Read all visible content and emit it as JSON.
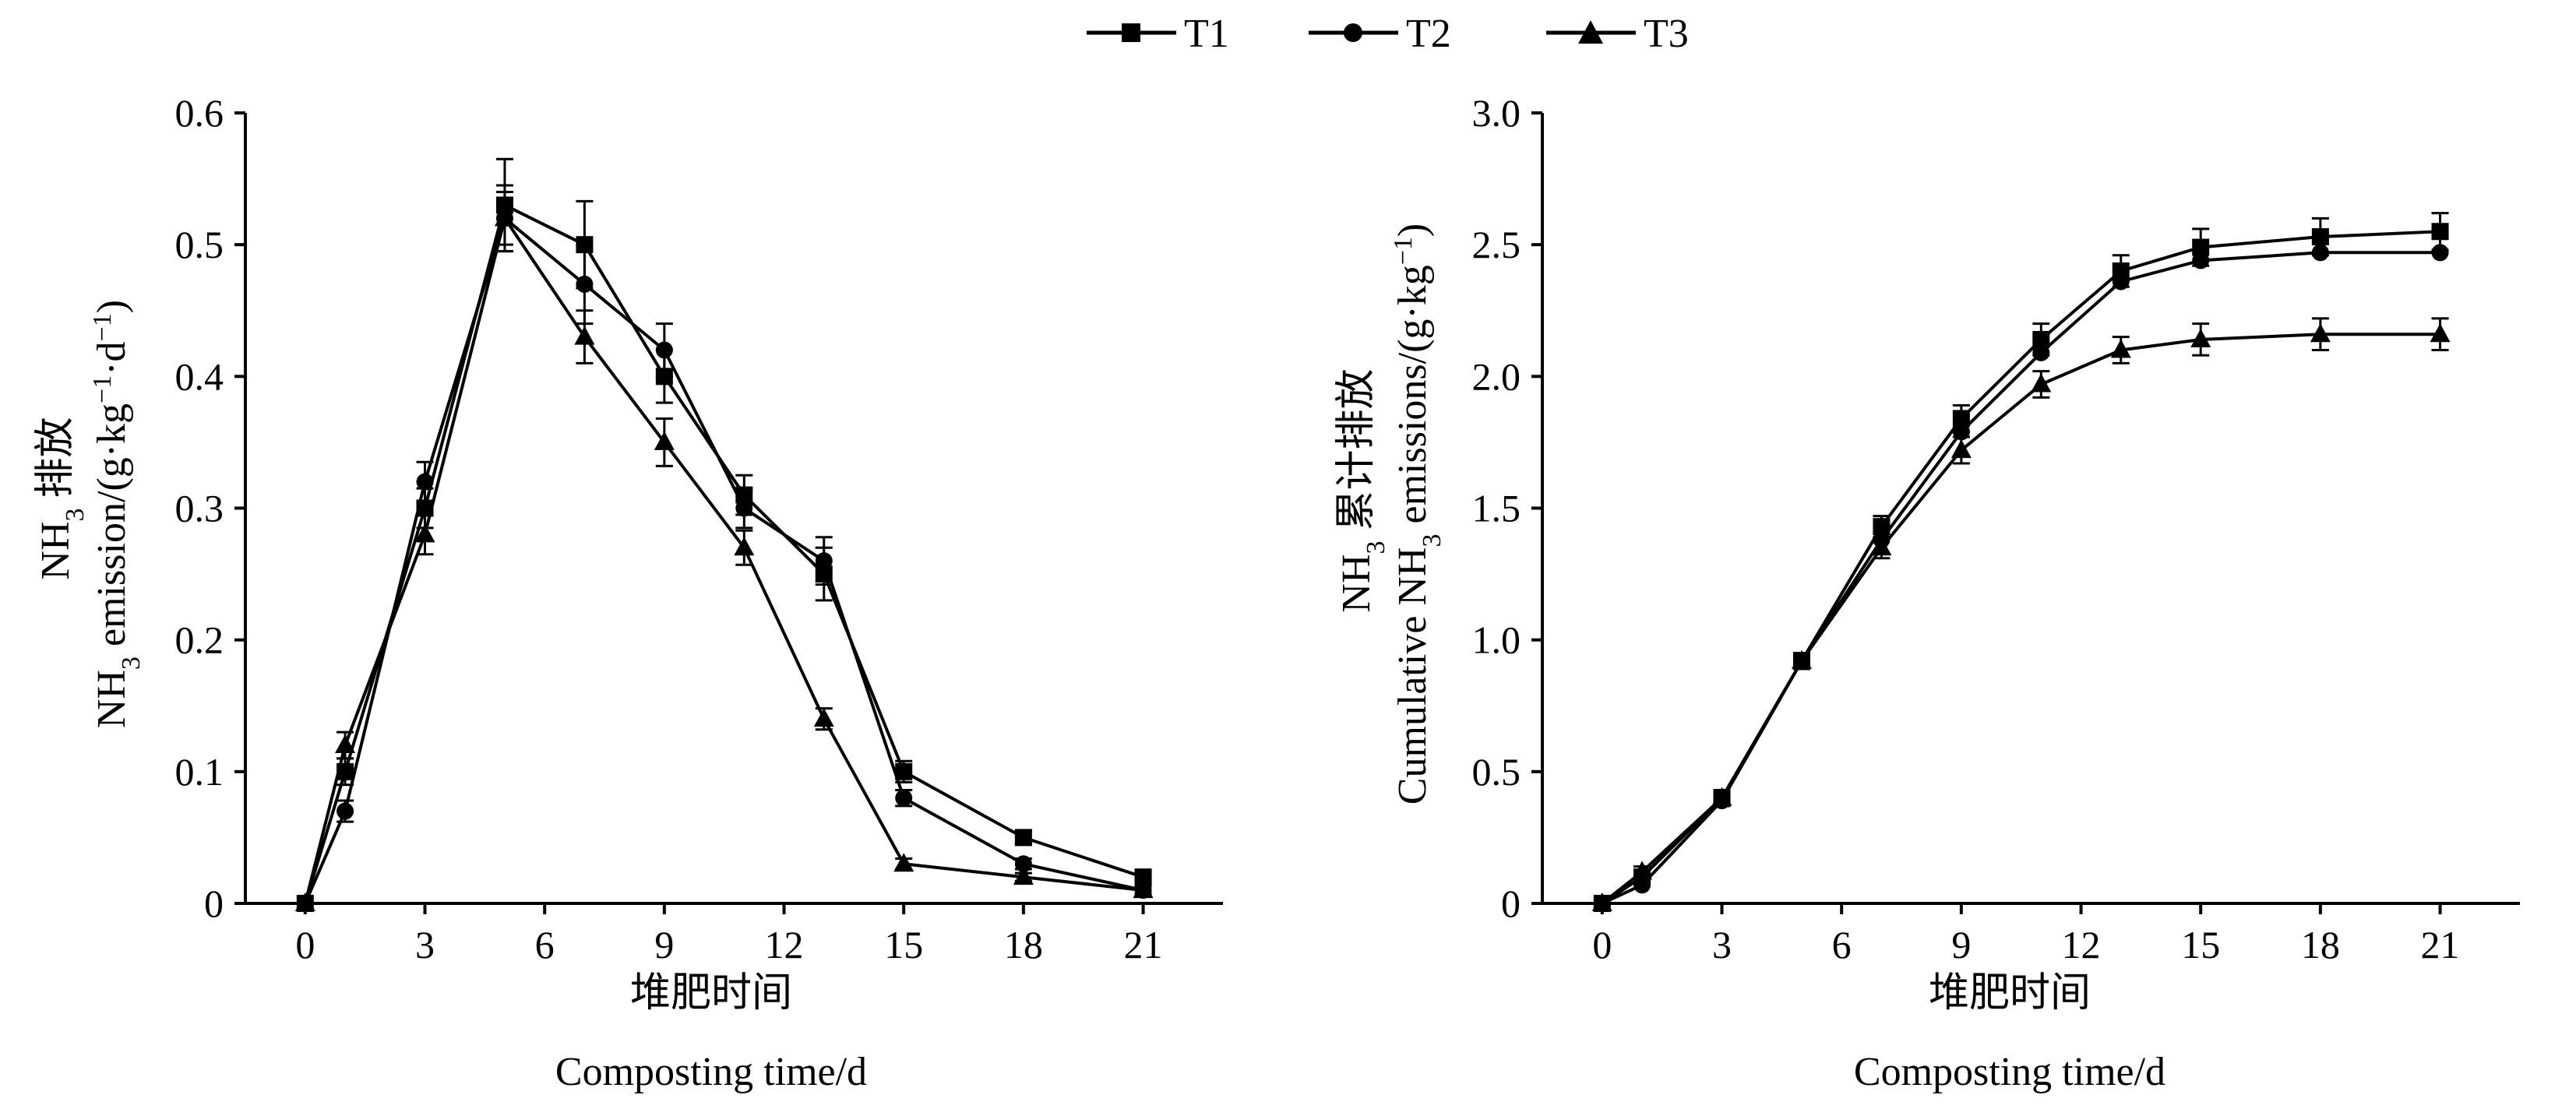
{
  "legend": [
    "T1",
    "T2",
    "T3"
  ],
  "chart_data": [
    {
      "type": "line",
      "xlabel_cn": "堆肥时间",
      "xlabel_en": "Composting time/d",
      "ylabel_cn": "NH3 排放",
      "ylabel_cn_parts": [
        "NH",
        "3",
        " 排放"
      ],
      "ylabel_en": "NH3 emission/(g·kg−1·d−1)",
      "ylabel_en_parts": [
        "NH",
        "3",
        " emission/(g·kg",
        "−1",
        "·d",
        "−1",
        ")"
      ],
      "xlim": [
        -1.5,
        23
      ],
      "ylim": [
        0,
        0.6
      ],
      "xticks": [
        0,
        3,
        6,
        9,
        12,
        15,
        18,
        21
      ],
      "yticks": [
        0,
        0.1,
        0.2,
        0.3,
        0.4,
        0.5,
        0.6
      ],
      "ytick_labels": [
        "0",
        "0.1",
        "0.2",
        "0.3",
        "0.4",
        "0.5",
        "0.6"
      ],
      "x": [
        0,
        1,
        3,
        5,
        7,
        9,
        11,
        13,
        15,
        18,
        21
      ],
      "series": [
        {
          "name": "T1",
          "marker": "square",
          "values": [
            0,
            0.1,
            0.3,
            0.53,
            0.5,
            0.4,
            0.31,
            0.25,
            0.1,
            0.05,
            0.02
          ],
          "errors": [
            0,
            0.01,
            0.015,
            0.035,
            0.033,
            0.02,
            0.015,
            0.02,
            0.008,
            0.005,
            0.004
          ]
        },
        {
          "name": "T2",
          "marker": "circle",
          "values": [
            0,
            0.07,
            0.32,
            0.52,
            0.47,
            0.42,
            0.3,
            0.26,
            0.08,
            0.03,
            0.01
          ],
          "errors": [
            0,
            0.008,
            0.015,
            0.025,
            0.03,
            0.02,
            0.015,
            0.018,
            0.006,
            0.004,
            0.003
          ]
        },
        {
          "name": "T3",
          "marker": "triangle",
          "values": [
            0,
            0.12,
            0.28,
            0.52,
            0.43,
            0.35,
            0.27,
            0.14,
            0.03,
            0.02,
            0.01
          ],
          "errors": [
            0,
            0.01,
            0.015,
            0.02,
            0.02,
            0.018,
            0.013,
            0.008,
            0.004,
            0.003,
            0.003
          ]
        }
      ]
    },
    {
      "type": "line",
      "xlabel_cn": "堆肥时间",
      "xlabel_en": "Composting time/d",
      "ylabel_cn": "NH3 累计排放",
      "ylabel_cn_parts": [
        "NH",
        "3",
        " 累计排放"
      ],
      "ylabel_en": "Cumulative NH3 emissions/(g·kg−1)",
      "ylabel_en_parts": [
        "Cumulative NH",
        "3",
        " emissions/(g·kg",
        "−1",
        ")"
      ],
      "xlim": [
        -1.5,
        23
      ],
      "ylim": [
        0,
        3.0
      ],
      "xticks": [
        0,
        3,
        6,
        9,
        12,
        15,
        18,
        21
      ],
      "yticks": [
        0,
        0.5,
        1.0,
        1.5,
        2.0,
        2.5,
        3.0
      ],
      "ytick_labels": [
        "0",
        "0.5",
        "1.0",
        "1.5",
        "2.0",
        "2.5",
        "3.0"
      ],
      "x": [
        0,
        1,
        3,
        5,
        7,
        9,
        11,
        13,
        15,
        18,
        21
      ],
      "series": [
        {
          "name": "T1",
          "marker": "square",
          "values": [
            0,
            0.1,
            0.4,
            0.92,
            1.43,
            1.84,
            2.14,
            2.4,
            2.49,
            2.53,
            2.55
          ],
          "errors": [
            0,
            0.02,
            0.03,
            0.03,
            0.04,
            0.05,
            0.06,
            0.06,
            0.07,
            0.07,
            0.07
          ]
        },
        {
          "name": "T2",
          "marker": "circle",
          "values": [
            0,
            0.07,
            0.39,
            0.92,
            1.38,
            1.79,
            2.09,
            2.36,
            2.44,
            2.47,
            2.47
          ]
        },
        {
          "name": "T3",
          "marker": "triangle",
          "values": [
            0,
            0.12,
            0.4,
            0.92,
            1.35,
            1.72,
            1.97,
            2.1,
            2.14,
            2.16,
            2.16
          ],
          "errors": [
            0,
            0.02,
            0.03,
            0.03,
            0.04,
            0.05,
            0.05,
            0.05,
            0.06,
            0.06,
            0.06
          ]
        }
      ]
    }
  ]
}
